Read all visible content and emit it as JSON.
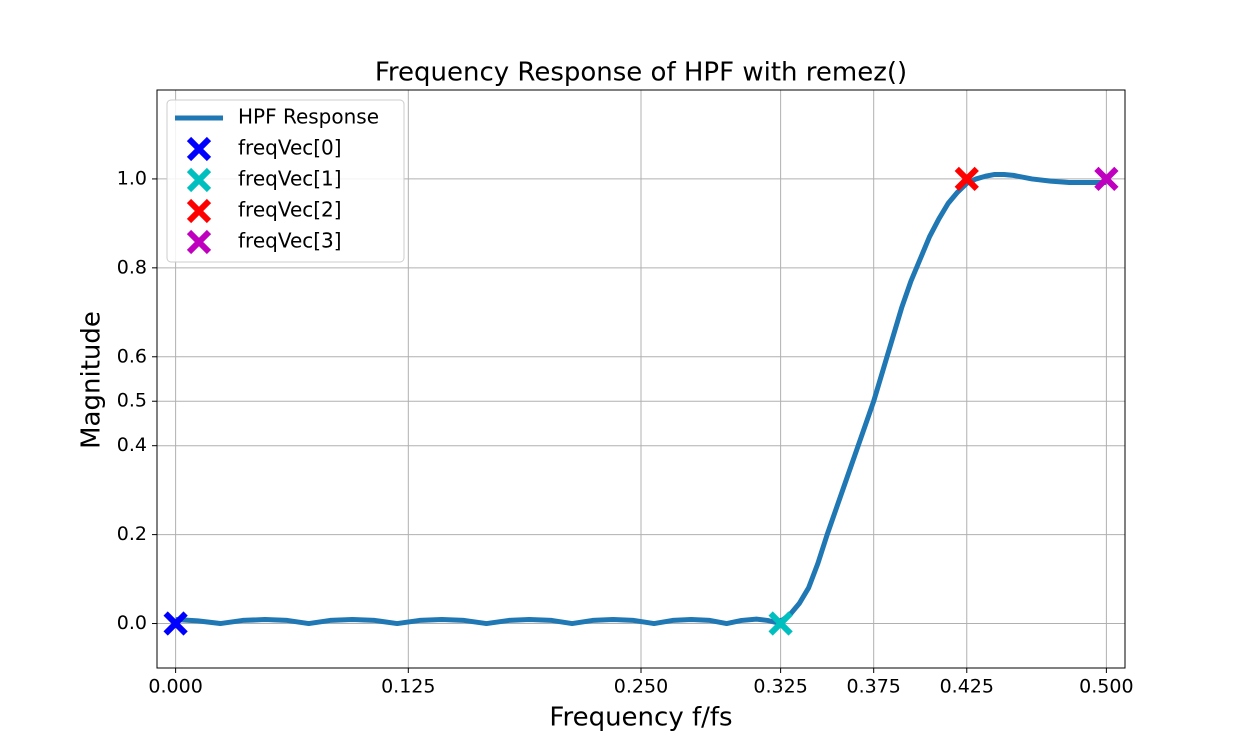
{
  "chart_data": {
    "type": "line",
    "title": "Frequency Response of HPF with remez()",
    "xlabel": "Frequency f/fs",
    "ylabel": "Magnitude",
    "xlim": [
      -0.01,
      0.51
    ],
    "ylim": [
      -0.1,
      1.2
    ],
    "xticks": [
      {
        "value": 0,
        "label": "0.000"
      },
      0.125,
      {
        "value": 0.25,
        "label": "0.250"
      },
      0.325,
      0.375,
      0.425,
      {
        "value": 0.5,
        "label": "0.500"
      }
    ],
    "yticks": [
      {
        "value": 0,
        "label": "0.0"
      },
      0.2,
      0.4,
      0.5,
      0.6,
      0.8,
      {
        "value": 1,
        "label": "1.0"
      }
    ],
    "grid": true,
    "legend": "upper left",
    "series": [
      {
        "name": "HPF Response",
        "color": "#1f77b4",
        "marker": "none",
        "x": [
          0,
          0.012,
          0.024,
          0.036,
          0.048,
          0.06,
          0.0715,
          0.083,
          0.095,
          0.107,
          0.119,
          0.131,
          0.143,
          0.155,
          0.167,
          0.179,
          0.19,
          0.202,
          0.213,
          0.224,
          0.235,
          0.246,
          0.257,
          0.267,
          0.277,
          0.287,
          0.296,
          0.304,
          0.312,
          0.318,
          0.322,
          0.326,
          0.33,
          0.335,
          0.34,
          0.345,
          0.35,
          0.355,
          0.36,
          0.365,
          0.37,
          0.375,
          0.38,
          0.385,
          0.39,
          0.395,
          0.4,
          0.405,
          0.41,
          0.415,
          0.42,
          0.425,
          0.43,
          0.435,
          0.44,
          0.445,
          0.45,
          0.46,
          0.47,
          0.48,
          0.49,
          0.5
        ],
        "values": [
          0.009,
          0.006,
          0,
          0.007,
          0.009,
          0.007,
          0,
          0.007,
          0.009,
          0.007,
          0,
          0.007,
          0.009,
          0.007,
          0,
          0.007,
          0.009,
          0.007,
          0,
          0.007,
          0.009,
          0.007,
          0,
          0.007,
          0.009,
          0.007,
          0,
          0.007,
          0.01,
          0.007,
          0.003,
          0.008,
          0.02,
          0.045,
          0.08,
          0.135,
          0.2,
          0.26,
          0.32,
          0.38,
          0.44,
          0.5,
          0.57,
          0.64,
          0.71,
          0.77,
          0.82,
          0.87,
          0.91,
          0.945,
          0.97,
          0.99,
          1.0,
          1.006,
          1.01,
          1.01,
          1.008,
          1.0,
          0.995,
          0.992,
          0.992,
          0.992
        ]
      },
      {
        "name": "freqVec[0]",
        "color": "#0000ff",
        "marker": "X",
        "x": [
          0
        ],
        "values": [
          0
        ]
      },
      {
        "name": "freqVec[1]",
        "color": "#00bfbf",
        "marker": "X",
        "x": [
          0.325
        ],
        "values": [
          0
        ]
      },
      {
        "name": "freqVec[2]",
        "color": "#ff0000",
        "marker": "X",
        "x": [
          0.425
        ],
        "values": [
          1
        ]
      },
      {
        "name": "freqVec[3]",
        "color": "#bf00bf",
        "marker": "X",
        "x": [
          0.5
        ],
        "values": [
          1
        ]
      }
    ]
  }
}
